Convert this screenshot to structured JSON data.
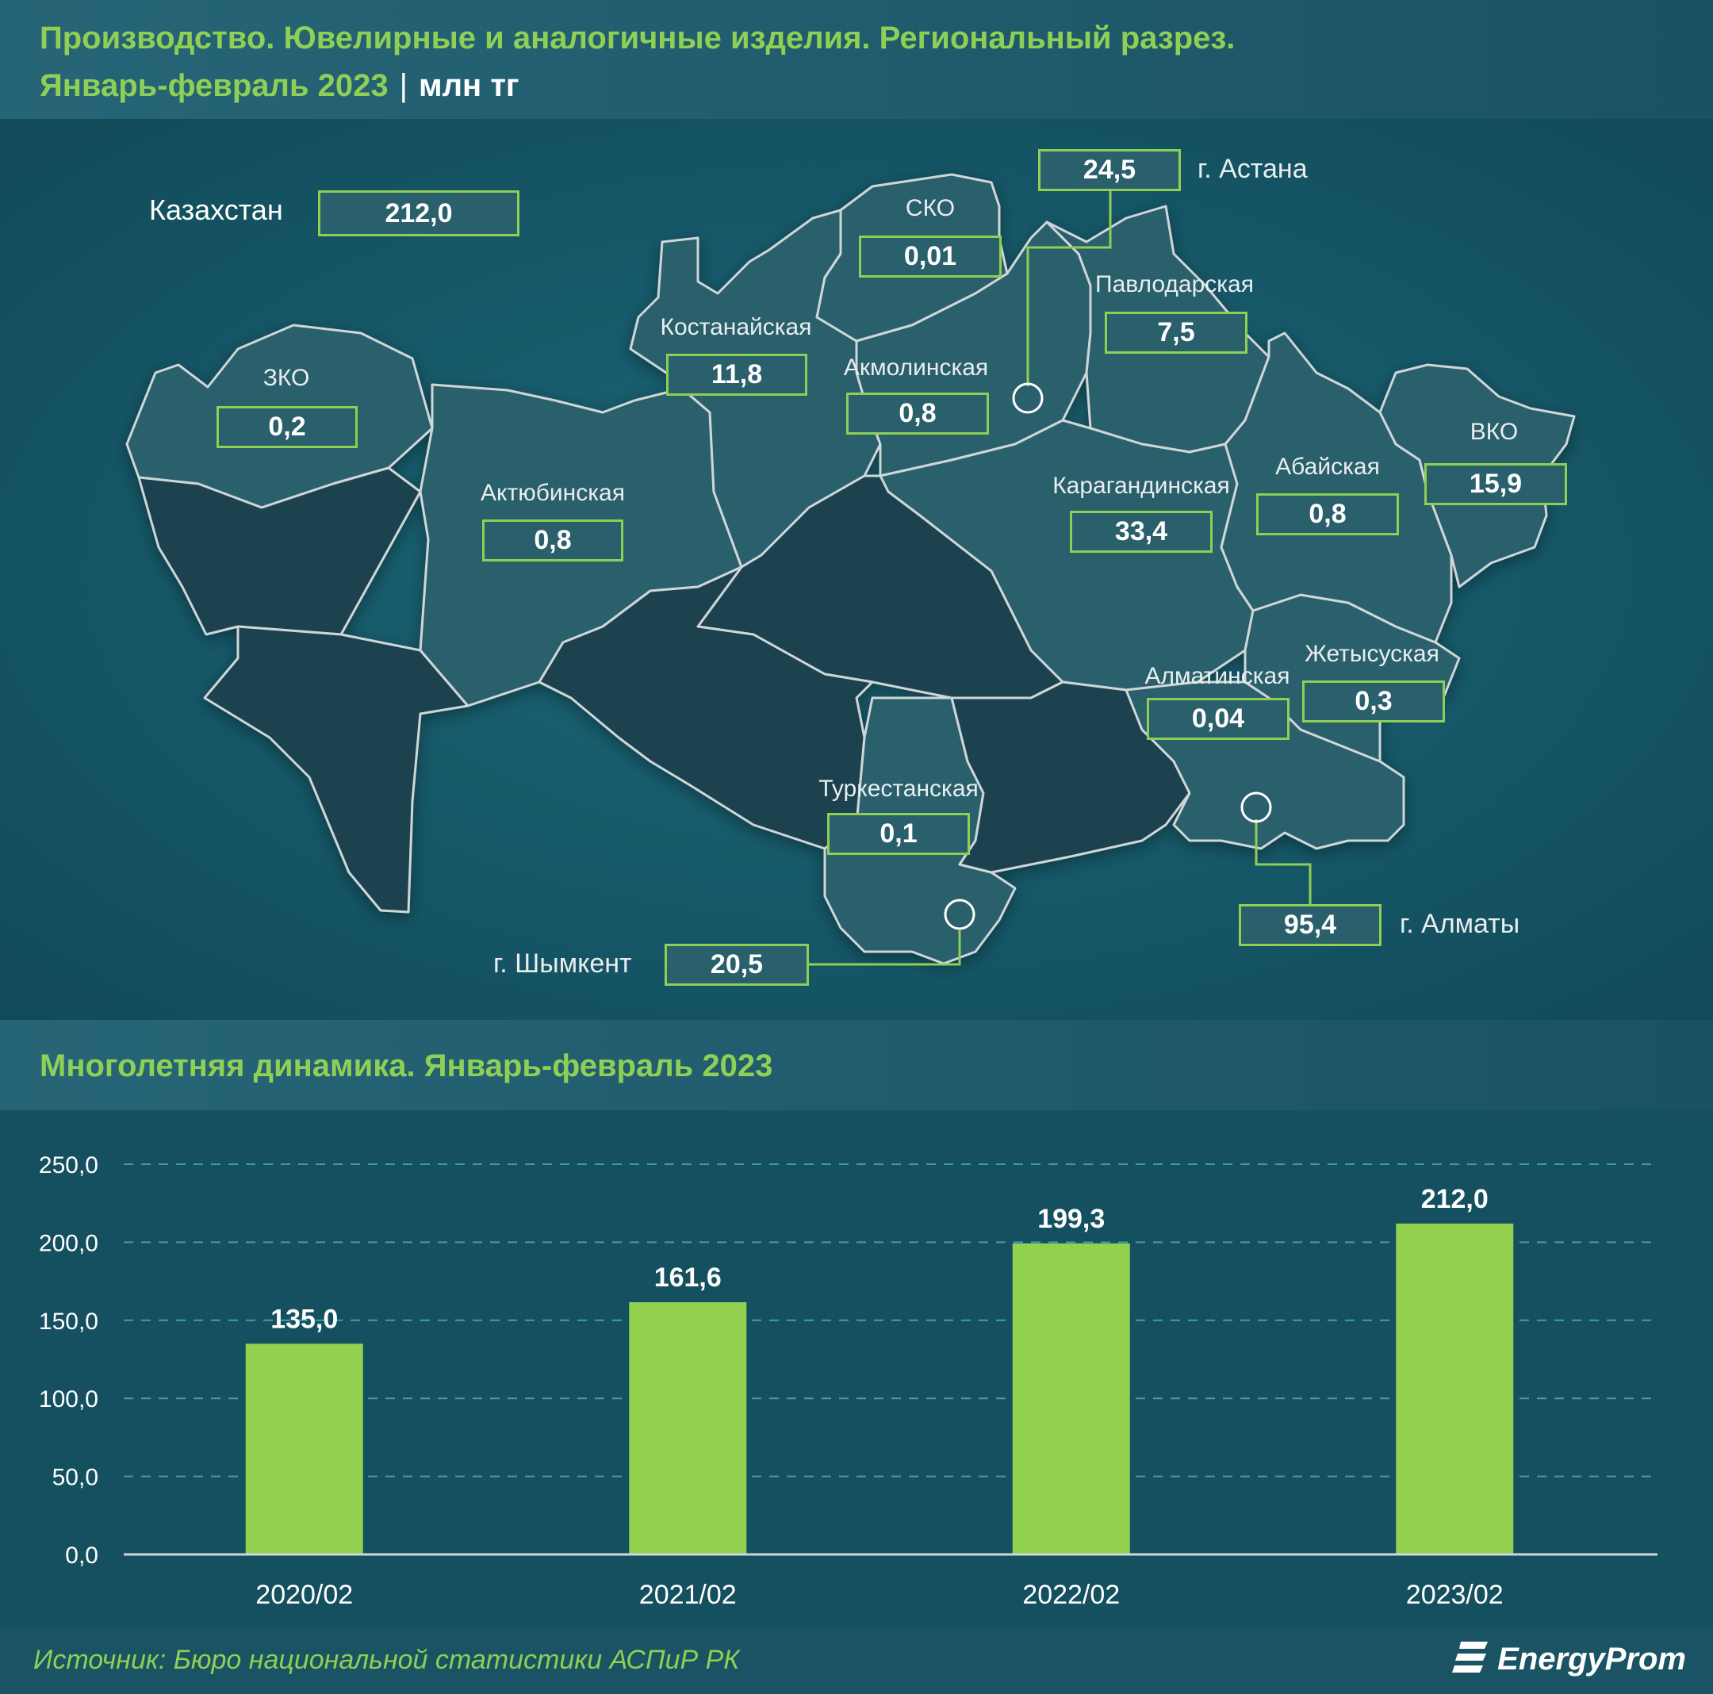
{
  "header": {
    "title_line1": "Производство. Ювелирные и аналогичные изделия. Региональный разрез.",
    "title_line2": "Январь-февраль 2023",
    "separator": "|",
    "unit": "млн тг"
  },
  "map": {
    "total": {
      "label": "Казахстан",
      "value": "212,0"
    },
    "regions": [
      {
        "id": "zko",
        "name": "ЗКО",
        "value": "0,2"
      },
      {
        "id": "aktobe",
        "name": "Актюбинская",
        "value": "0,8"
      },
      {
        "id": "kostanay",
        "name": "Костанайская",
        "value": "11,8"
      },
      {
        "id": "sko",
        "name": "СКО",
        "value": "0,01"
      },
      {
        "id": "akmola",
        "name": "Акмолинская",
        "value": "0,8"
      },
      {
        "id": "pavlodar",
        "name": "Павлодарская",
        "value": "7,5"
      },
      {
        "id": "karaganda",
        "name": "Карагандинская",
        "value": "33,4"
      },
      {
        "id": "abay",
        "name": "Абайская",
        "value": "0,8"
      },
      {
        "id": "vko",
        "name": "ВКО",
        "value": "15,9"
      },
      {
        "id": "zhetysu",
        "name": "Жетысуская",
        "value": "0,3"
      },
      {
        "id": "almaty_reg",
        "name": "Алматинская",
        "value": "0,04"
      },
      {
        "id": "turkestan",
        "name": "Туркестанская",
        "value": "0,1"
      }
    ],
    "cities": [
      {
        "id": "astana",
        "name": "г. Астана",
        "value": "24,5"
      },
      {
        "id": "almaty",
        "name": "г. Алматы",
        "value": "95,4"
      },
      {
        "id": "shymkent",
        "name": "г. Шымкент",
        "value": "20,5"
      }
    ]
  },
  "chart_header": {
    "title": "Многолетняя динамика. Январь-февраль 2023"
  },
  "chart_data": {
    "type": "bar",
    "categories": [
      "2020/02",
      "2021/02",
      "2022/02",
      "2023/02"
    ],
    "values": [
      135.0,
      161.6,
      199.3,
      212.0
    ],
    "value_labels": [
      "135,0",
      "161,6",
      "199,3",
      "212,0"
    ],
    "y_ticks": [
      "0,0",
      "50,0",
      "100,0",
      "150,0",
      "200,0",
      "250,0"
    ],
    "ylim": [
      0,
      250
    ],
    "grid": true,
    "bar_color": "#92d050",
    "gridline_color": "#3aa0b0"
  },
  "footer": {
    "source": "Источник: Бюро национальной статистики АСПиР РК",
    "brand": "EnergyProm"
  },
  "colors": {
    "accent_green": "#8fcf56",
    "background": "#14505f",
    "region_light": "#2a5f6c",
    "region_dark": "#1a4250"
  }
}
